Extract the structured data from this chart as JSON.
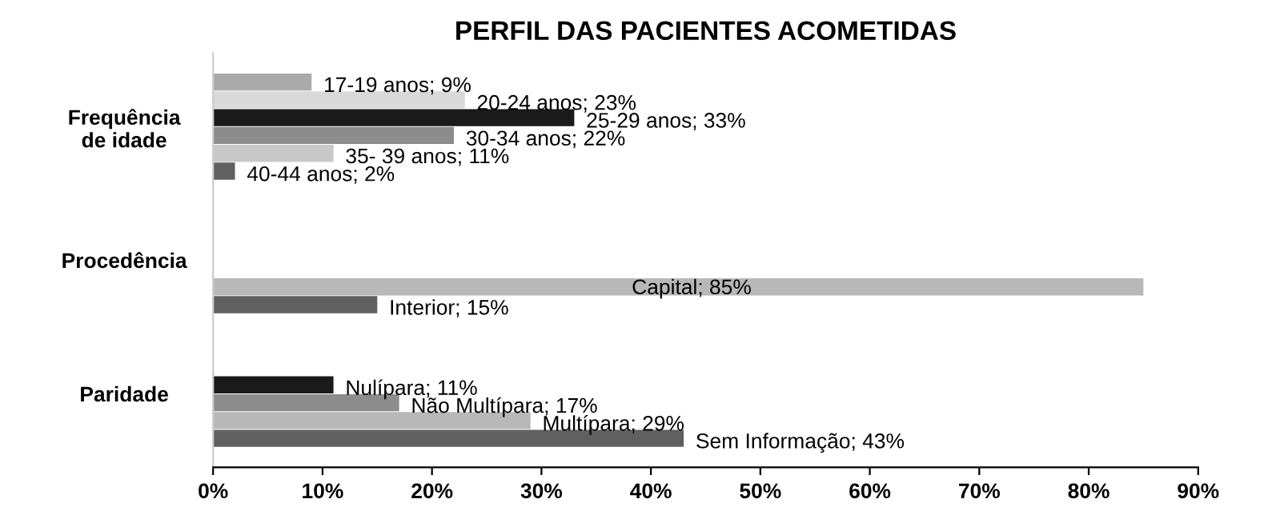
{
  "chart_data": {
    "type": "bar",
    "orientation": "horizontal",
    "title": "PERFIL DAS PACIENTES ACOMETIDAS",
    "categories": [
      "Frequência\nde idade",
      "Procedência",
      "Paridade"
    ],
    "series": [
      {
        "colors": [
          "#aaaaaa",
          null,
          null
        ],
        "values": [
          9,
          null,
          null
        ],
        "value_labels": [
          "17-19 anos; 9%",
          null,
          null
        ]
      },
      {
        "colors": [
          "#d9d9d9",
          null,
          null
        ],
        "values": [
          23,
          null,
          null
        ],
        "value_labels": [
          "20-24 anos; 23%",
          null,
          null
        ]
      },
      {
        "colors": [
          "#1a1a1a",
          null,
          "#1a1a1a"
        ],
        "values": [
          33,
          null,
          11
        ],
        "value_labels": [
          "25-29 anos; 33%",
          null,
          "Nulípara; 11%"
        ]
      },
      {
        "colors": [
          "#8c8c8c",
          null,
          "#8c8c8c"
        ],
        "values": [
          22,
          null,
          17
        ],
        "value_labels": [
          "30-34 anos; 22%",
          null,
          "Não Multípara; 17%"
        ]
      },
      {
        "colors": [
          "#c8c8c8",
          "#b8b8b8",
          "#b8b8b8"
        ],
        "values": [
          11,
          85,
          29
        ],
        "value_labels": [
          "35- 39 anos; 11%",
          "Capital; 85%",
          "Multípara; 29%"
        ]
      },
      {
        "colors": [
          "#606060",
          "#606060",
          "#606060"
        ],
        "values": [
          2,
          15,
          43
        ],
        "value_labels": [
          "40-44 anos; 2%",
          "Interior; 15%",
          "Sem Informação; 43%"
        ]
      }
    ],
    "xlim": [
      0,
      90
    ],
    "xticks": [
      {
        "value": 0,
        "label": "0%"
      },
      {
        "value": 10,
        "label": "10%"
      },
      {
        "value": 20,
        "label": "20%"
      },
      {
        "value": 30,
        "label": "30%"
      },
      {
        "value": 40,
        "label": "40%"
      },
      {
        "value": 50,
        "label": "50%"
      },
      {
        "value": 60,
        "label": "60%"
      },
      {
        "value": 70,
        "label": "70%"
      },
      {
        "value": 80,
        "label": "80%"
      },
      {
        "value": 90,
        "label": "90%"
      }
    ],
    "grid": false,
    "legend": false
  }
}
